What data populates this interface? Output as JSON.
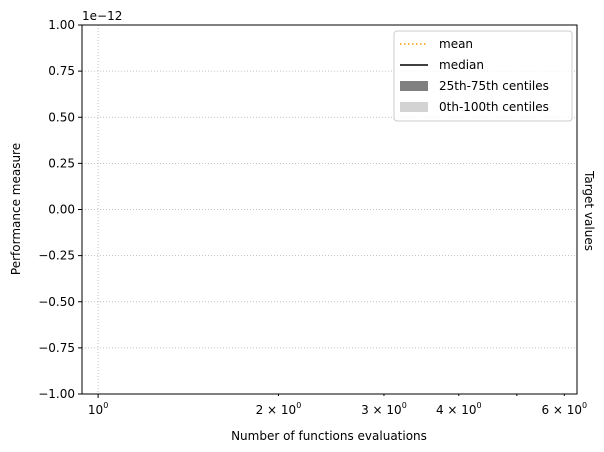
{
  "chart_data": {
    "type": "line",
    "title": "",
    "xlabel": "Number of functions evaluations",
    "ylabel": "Performance measure",
    "right_label": "Target values",
    "offset_text": "1e−12",
    "x_scale": "log",
    "xlim": [
      0.94,
      6.3
    ],
    "ylim": [
      -1.0,
      1.0
    ],
    "grid": true,
    "legend_position": "top-right",
    "x_ticks": [
      {
        "value": 1,
        "label": "10",
        "exp": "0"
      },
      {
        "value": 2,
        "label": "2 × 10",
        "exp": "0"
      },
      {
        "value": 3,
        "label": "3 × 10",
        "exp": "0"
      },
      {
        "value": 4,
        "label": "4 × 10",
        "exp": "0"
      },
      {
        "value": 6,
        "label": "6 × 10",
        "exp": "0"
      }
    ],
    "x_minor_ticks": [
      5
    ],
    "y_ticks": [
      {
        "value": 1.0,
        "label": "1.00"
      },
      {
        "value": 0.75,
        "label": "0.75"
      },
      {
        "value": 0.5,
        "label": "0.50"
      },
      {
        "value": 0.25,
        "label": "0.25"
      },
      {
        "value": 0.0,
        "label": "0.00"
      },
      {
        "value": -0.25,
        "label": "−0.25"
      },
      {
        "value": -0.5,
        "label": "−0.50"
      },
      {
        "value": -0.75,
        "label": "−0.75"
      },
      {
        "value": -1.0,
        "label": "−1.00"
      }
    ],
    "series": [],
    "legend": [
      {
        "label": "mean",
        "style": "dotted",
        "color": "#ff9900"
      },
      {
        "label": "median",
        "style": "line",
        "color": "#000000"
      },
      {
        "label": "25th-75th centiles",
        "style": "patch",
        "color": "#808080"
      },
      {
        "label": "0th-100th centiles",
        "style": "patch",
        "color": "#d3d3d3"
      }
    ]
  }
}
